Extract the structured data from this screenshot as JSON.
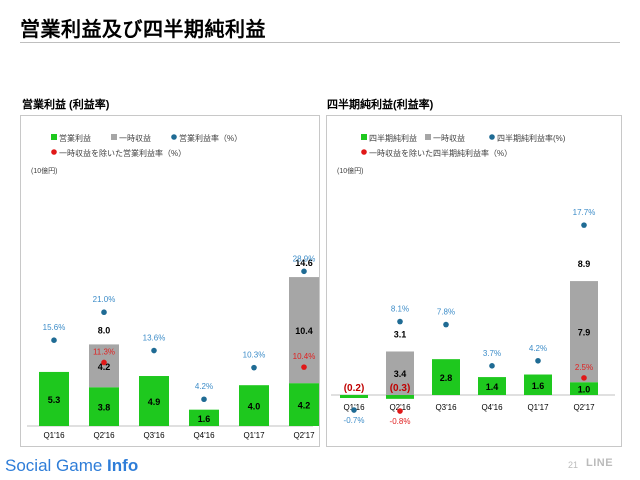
{
  "page": {
    "title": "営業利益及び四半期純利益",
    "page_number": "21",
    "brand": "LINE",
    "watermark": {
      "part1": "Social Game ",
      "part2": "Info"
    }
  },
  "colors": {
    "green": "#1ec81e",
    "gray": "#a6a6a6",
    "blue": "#1f6b94",
    "red": "#e01818",
    "blue_text": "#3c8cc8",
    "red_text": "#e02020"
  },
  "chart_data": [
    {
      "type": "bar",
      "stacked": true,
      "section_title": "営業利益 (利益率)",
      "unit_label": "(10億円)",
      "categories": [
        "Q1'16",
        "Q2'16",
        "Q3'16",
        "Q4'16",
        "Q1'17",
        "Q2'17"
      ],
      "series": [
        {
          "name": "営業利益",
          "values": [
            5.3,
            3.8,
            4.9,
            1.6,
            4.0,
            4.2
          ]
        },
        {
          "name": "一時収益",
          "values": [
            0,
            4.2,
            0,
            0,
            0,
            10.4
          ]
        }
      ],
      "totals": [
        null,
        "8.0",
        null,
        null,
        null,
        "14.6"
      ],
      "rates": [
        {
          "name": "営業利益率（%）",
          "values": [
            15.6,
            21.0,
            13.6,
            4.2,
            10.3,
            28.9
          ],
          "labels": [
            "15.6%",
            "21.0%",
            "13.6%",
            "4.2%",
            "10.3%",
            "28.9%"
          ]
        },
        {
          "name": "一時収益を除いた営業利益率（%）",
          "values": [
            null,
            11.3,
            null,
            null,
            null,
            10.4
          ],
          "labels": [
            null,
            "11.3%",
            null,
            null,
            null,
            "10.4%"
          ]
        }
      ],
      "grid": false,
      "legend_position": "top-left"
    },
    {
      "type": "bar",
      "stacked": true,
      "section_title": "四半期純利益(利益率)",
      "unit_label": "(10億円)",
      "categories": [
        "Q1'16",
        "Q2'16",
        "Q3'16",
        "Q4'16",
        "Q1'17",
        "Q2'17"
      ],
      "series": [
        {
          "name": "四半期純利益",
          "values": [
            -0.2,
            -0.3,
            2.8,
            1.4,
            1.6,
            1.0
          ]
        },
        {
          "name": "一時収益",
          "values": [
            0,
            3.4,
            0,
            0,
            0,
            7.9
          ]
        }
      ],
      "value_labels": [
        "(0.2)",
        "(0.3)",
        "2.8",
        "1.4",
        "1.6",
        "1.0"
      ],
      "totals": [
        null,
        "3.1",
        null,
        null,
        null,
        "8.9"
      ],
      "rates": [
        {
          "name": "四半期純利益率(%)",
          "values": [
            -0.7,
            8.1,
            7.8,
            3.7,
            4.2,
            17.7
          ],
          "labels": [
            "-0.7%",
            "8.1%",
            "7.8%",
            "3.7%",
            "4.2%",
            "17.7%"
          ]
        },
        {
          "name": "一時収益を除いた四半期純利益率（%）",
          "values": [
            null,
            -0.8,
            null,
            null,
            null,
            2.5
          ],
          "labels": [
            null,
            "-0.8%",
            null,
            null,
            null,
            "2.5%"
          ]
        }
      ],
      "grid": false,
      "legend_position": "top-left"
    }
  ]
}
